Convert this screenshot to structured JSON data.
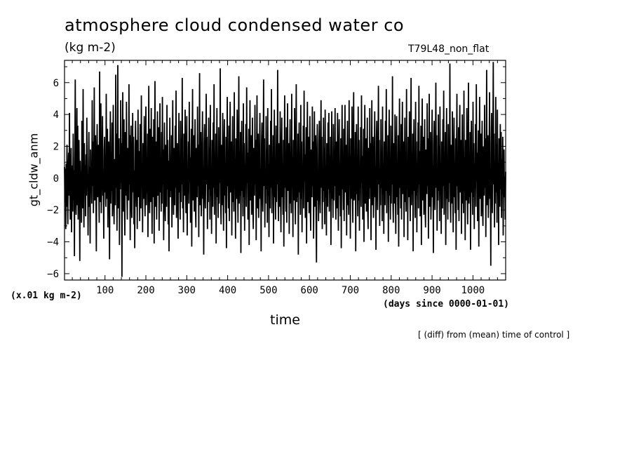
{
  "chart_data": {
    "type": "line",
    "title": "atmosphere cloud condensed water co",
    "units": "(kg m-2)",
    "run_label": "T79L48_non_flat",
    "ylabel": "gt_cldw_anm",
    "xlabel": "time",
    "y_scale_note": "(x.01 kg m-2)",
    "x_units": "(days since 0000-01-01)",
    "comparison_note": "[ (diff) from (mean) time of control ]",
    "xlim": [
      1,
      1080
    ],
    "ylim": [
      -6.4,
      7.4
    ],
    "x_ticks": [
      100,
      200,
      300,
      400,
      500,
      600,
      700,
      800,
      900,
      1000
    ],
    "y_ticks": [
      -6,
      -4,
      -2,
      0,
      2,
      4,
      6
    ],
    "series": [
      {
        "name": "gt_cldw_anm",
        "sampling": "daily, 1080 values",
        "values": [
          0.7,
          -1.5,
          0.6,
          -3.2,
          0.9,
          -1.8,
          2.1,
          -0.5,
          -2.9,
          0.4,
          1.6,
          -1.1,
          4.1,
          -0.8,
          -2.6,
          0.3,
          1.9,
          -3.4,
          0.8,
          -0.6,
          -2.1,
          2.8,
          -1.4,
          0.5,
          -4.9,
          1.2,
          6.2,
          -0.9,
          -2.3,
          0.6,
          4.4,
          -1.7,
          3.3,
          -2.6,
          0.9,
          2.4,
          -0.4,
          -5.2,
          1.1,
          -1.3,
          0.4,
          -2.8,
          3.6,
          1.2,
          -1.9,
          5.6,
          -0.7,
          -3.1,
          2.2,
          -0.3,
          0.8,
          -2.4,
          1.5,
          -1.1,
          3.8,
          -0.6,
          0.2,
          -3.6,
          0.5,
          2.9,
          -1.8,
          0.7,
          -4.1,
          1.8,
          -0.9,
          0.3,
          -1.6,
          4.9,
          -0.5,
          2.3,
          -2.2,
          0.6,
          5.7,
          -1.4,
          0.9,
          2.7,
          -0.8,
          -4.6,
          1.4,
          3.4,
          -1.2,
          0.5,
          2.1,
          -0.7,
          -2.8,
          6.7,
          -1.5,
          0.8,
          4.7,
          -2.2,
          -0.4,
          1.6,
          3.9,
          -1.1,
          0.2,
          -3.8,
          1.7,
          2.6,
          -0.9,
          0.4,
          -1.8,
          5.3,
          -1.3,
          0.6,
          3.1,
          -3.1,
          0.9,
          2.3,
          -0.5,
          -5.1,
          1.4,
          4.2,
          -1.6,
          0.3,
          -0.8,
          3.5,
          -2.4,
          0.7,
          4.6,
          -1.3,
          -2.9,
          1.2,
          0.5,
          -1.7,
          6.5,
          -0.6,
          2.8,
          -3.3,
          0.4,
          7.1,
          -1.9,
          0.8,
          2.5,
          -4.2,
          1.5,
          -0.7,
          4.9,
          -0.3,
          2.2,
          -6.2,
          1.1,
          5.4,
          -2.1,
          0.6,
          3.7,
          -1.5,
          -3.6,
          2.9,
          0.2,
          -1.1,
          4.8,
          -0.8,
          -2.6,
          1.9,
          0.7,
          -1.4,
          5.9,
          -0.4,
          2.7,
          -3.9,
          0.9,
          3.3,
          -1.6,
          -2.5,
          1.3,
          4.1,
          -0.9,
          2.6,
          -2.9,
          0.5,
          -4.4,
          1.8,
          3.6,
          -0.7,
          -1.8,
          2.4,
          -3.2,
          0.6,
          4.3,
          -1.2,
          1.7,
          -0.3,
          -2.7,
          3.4,
          1.1,
          -1.9,
          5.2,
          -0.5,
          0.8,
          -3.4,
          2.2,
          0.3,
          -1.3,
          3.9,
          -0.8,
          -2.4,
          1.6,
          4.5,
          -1.7,
          0.4,
          -0.9,
          2.8,
          -3.7,
          1.2,
          5.8,
          -0.6,
          -2.2,
          3.1,
          0.7,
          -1.5,
          4.4,
          -0.2,
          -3.5,
          2.6,
          0.9,
          -1.2,
          3.7,
          -4.1,
          1.4,
          6.1,
          -1.8,
          0.3,
          2.3,
          -2.6,
          0.8,
          4.2,
          -1.1,
          -0.5,
          3.2,
          -3.3,
          1.5,
          4.7,
          -0.9,
          0.2,
          -2.1,
          2.9,
          -1.6,
          5.1,
          -0.4,
          1.8,
          -3.9,
          0.6,
          3.5,
          -1.4,
          -2.7,
          2.1,
          0.5,
          -1.8,
          4.6,
          -0.7,
          2.4,
          -2.9,
          1.1,
          -4.6,
          0.9,
          3.8,
          -1.2,
          0.4,
          -0.8,
          2.7,
          -3.1,
          1.6,
          4.9,
          -0.3,
          -2.3,
          1.9,
          0.7,
          -1.7,
          3.3,
          -0.6,
          5.5,
          -2.5,
          0.8,
          2.2,
          -1.3,
          -3.8,
          1.4,
          4.1,
          -0.9,
          0.3,
          -2.6,
          3.6,
          -1.5,
          2.5,
          -0.4,
          6.3,
          -1.9,
          0.6,
          -3.4,
          2.8,
          1.2,
          -1.1,
          4.3,
          -0.7,
          -2.2,
          1.7,
          3.9,
          -3.6,
          0.5,
          -0.9,
          2.3,
          -1.6,
          4.8,
          -0.2,
          1.3,
          -2.8,
          0.9,
          3.1,
          -4.3,
          1.5,
          5.6,
          -1.4,
          -0.6,
          2.7,
          -2.1,
          0.4,
          3.7,
          -1.8,
          -3.1,
          1.9,
          0.8,
          -1.2,
          4.5,
          -0.5,
          2.1,
          -3.7,
          0.7,
          6.6,
          -1.7,
          0.3,
          2.9,
          -2.4,
          -0.8,
          1.6,
          4.2,
          -1.3,
          0.6,
          -4.8,
          2.2,
          3.4,
          -0.9,
          -1.9,
          1.1,
          5.3,
          -0.4,
          2.6,
          -3.2,
          0.5,
          -1.5,
          3.8,
          -0.7,
          1.9,
          -2.6,
          4.6,
          -1.1,
          0.8,
          -3.5,
          2.4,
          0.2,
          -1.8,
          3.5,
          -0.6,
          5.9,
          -2.3,
          1.4,
          -0.9,
          2.8,
          -4.1,
          0.7,
          4.4,
          -1.2,
          0.4,
          -2.5,
          3.2,
          -1.6,
          1.8,
          -0.3,
          6.9,
          -1.4,
          -2.9,
          2.1,
          0.6,
          -1.7,
          4.1,
          -0.8,
          -3.3,
          1.5,
          3.7,
          -1.1,
          0.9,
          -2.2,
          2.6,
          -4.4,
          1.3,
          5.1,
          -0.5,
          0.3,
          -1.9,
          3.3,
          -2.7,
          1.7,
          4.8,
          -0.9,
          -0.4,
          2.3,
          -3.6,
          0.8,
          3.9,
          -1.5,
          0.5,
          -2.1,
          5.4,
          -0.7,
          1.2,
          -3.8,
          2.5,
          0.4,
          -1.3,
          4.3,
          -0.6,
          -2.8,
          1.8,
          6.4,
          -1.6,
          0.7,
          -1.1,
          2.9,
          -4.7,
          1.1,
          3.6,
          -0.8,
          0.2,
          -2.4,
          4.7,
          -1.2,
          2.2,
          -3.3,
          0.9,
          -0.5,
          3.4,
          -1.8,
          5.7,
          -0.3,
          1.6,
          -2.6,
          0.6,
          3.1,
          -4.2,
          1.4,
          4.9,
          -1.4,
          -0.7,
          2.7,
          -2.3,
          0.5,
          3.8,
          -1.7,
          -3.2,
          1.9,
          0.8,
          -1.1,
          4.6,
          -0.4,
          2.4,
          -3.9,
          0.7,
          5.2,
          -1.9,
          0.3,
          2.8,
          -2.5,
          -0.9,
          1.5,
          4.1,
          -1.3,
          0.6,
          -4.6,
          2.3,
          3.5,
          -0.8,
          -2.1,
          1.2,
          6.2,
          -0.5,
          2.5,
          -3.1,
          0.4,
          -1.6,
          3.9,
          -0.7,
          1.8,
          -2.8,
          4.4,
          -1.1,
          0.9,
          -3.7,
          2.1,
          0.2,
          -1.9,
          3.6,
          -0.6,
          5.6,
          -2.2,
          1.3,
          -0.8,
          2.7,
          -4.1,
          0.8,
          4.3,
          -1.2,
          0.3,
          -2.6,
          3.3,
          -1.5,
          1.7,
          -0.4,
          6.8,
          -1.3,
          -2.7,
          2.2,
          0.6,
          -1.8,
          4.2,
          -0.9,
          -3.4,
          1.6,
          3.8,
          -1.2,
          0.7,
          -2.3,
          2.4,
          -4.3,
          1.2,
          5.2,
          -0.6,
          0.4,
          -2.1,
          3.2,
          -2.8,
          1.6,
          4.7,
          -0.8,
          -0.3,
          2.2,
          -3.5,
          0.9,
          3.7,
          -1.6,
          0.4,
          -2.2,
          5.3,
          -0.6,
          1.3,
          -3.7,
          2.4,
          0.3,
          -1.4,
          4.4,
          -0.7,
          -2.9,
          1.7,
          5.9,
          -1.5,
          0.8,
          -1.2,
          2.8,
          -4.8,
          1.1,
          3.5,
          -0.9,
          0.3,
          -2.3,
          4.6,
          -1.3,
          2.3,
          -3.4,
          0.8,
          -0.4,
          3.3,
          -1.9,
          5.5,
          -0.2,
          1.5,
          -2.5,
          0.7,
          3.2,
          -4.1,
          1.3,
          4.8,
          -1.5,
          -0.6,
          2.6,
          -2.2,
          0.4,
          3.9,
          -1.8,
          -3.3,
          1.8,
          0.9,
          -1.2,
          4.5,
          -0.5,
          2.3,
          -3.8,
          0.6,
          4.2,
          -1.8,
          0.4,
          2.7,
          -2.4,
          -5.3,
          1.4,
          3.4,
          -1.4,
          0.5,
          -2.7,
          2.2,
          3.6,
          -0.9,
          -2.2,
          1.1,
          4.9,
          -0.6,
          2.6,
          -3.2,
          0.5,
          -1.5,
          3.8,
          -0.8,
          1.9,
          -2.9,
          4.3,
          -1.2,
          0.8,
          -3.6,
          2.2,
          0.3,
          -1.8,
          3.5,
          -0.7,
          4.1,
          -2.1,
          1.4,
          -0.9,
          2.6,
          -4.2,
          0.9,
          4.2,
          -1.3,
          0.2,
          -2.5,
          3.4,
          -1.4,
          1.8,
          -0.5,
          4.4,
          -1.2,
          -2.6,
          2.3,
          0.7,
          -1.9,
          4.1,
          -1.0,
          -3.3,
          1.7,
          3.7,
          -1.1,
          0.6,
          -2.4,
          2.5,
          -4.4,
          1.2,
          4.6,
          -0.7,
          0.4,
          -2.0,
          3.1,
          -2.7,
          1.5,
          4.6,
          -0.9,
          -0.2,
          2.1,
          -3.6,
          1.0,
          3.6,
          -1.7,
          0.3,
          -2.3,
          4.9,
          -0.5,
          1.4,
          -3.8,
          2.5,
          0.4,
          -1.3,
          4.5,
          -0.8,
          -2.8,
          1.8,
          5.4,
          -1.4,
          0.9,
          -1.3,
          2.9,
          -4.6,
          1.0,
          3.4,
          -1.0,
          0.2,
          -2.4,
          4.5,
          -1.4,
          2.4,
          -3.3,
          0.7,
          -0.5,
          3.2,
          -1.8,
          5.2,
          -0.3,
          1.4,
          -2.6,
          0.8,
          3.1,
          -4.0,
          1.4,
          4.6,
          -1.6,
          -0.7,
          2.5,
          -2.1,
          0.5,
          3.8,
          -1.9,
          -3.2,
          1.9,
          0.8,
          -1.3,
          4.4,
          -0.6,
          2.2,
          -3.9,
          0.7,
          4.9,
          -1.7,
          0.5,
          2.6,
          -2.5,
          -0.8,
          1.4,
          4.2,
          -1.2,
          0.7,
          -4.5,
          2.4,
          3.6,
          -0.7,
          -2.0,
          1.2,
          5.8,
          -0.4,
          2.4,
          -3.0,
          0.5,
          -1.7,
          3.7,
          -0.6,
          1.7,
          -2.7,
          4.5,
          -1.0,
          0.9,
          -3.5,
          2.3,
          0.2,
          -1.7,
          3.6,
          -0.8,
          5.6,
          -2.2,
          1.2,
          -0.9,
          2.7,
          -4.0,
          0.9,
          4.3,
          -1.1,
          0.3,
          -2.6,
          3.3,
          -1.6,
          1.9,
          -0.4,
          6.4,
          -1.5,
          -2.8,
          2.2,
          0.5,
          -1.6,
          4.0,
          -0.9,
          -3.5,
          1.6,
          3.9,
          -1.2,
          0.8,
          -2.3,
          2.7,
          -4.3,
          1.3,
          5.0,
          -0.6,
          0.3,
          -1.9,
          3.4,
          -2.6,
          1.7,
          4.8,
          -1.0,
          -0.4,
          2.3,
          -3.7,
          0.8,
          3.8,
          -1.5,
          0.5,
          -2.1,
          5.6,
          -0.7,
          1.1,
          -3.9,
          2.6,
          0.4,
          -1.2,
          4.2,
          -0.7,
          -2.7,
          1.9,
          6.3,
          -1.7,
          0.6,
          -1.0,
          2.8,
          -4.6,
          1.2,
          3.7,
          -0.8,
          0.3,
          -2.5,
          4.8,
          -1.1,
          2.3,
          -3.4,
          0.9,
          -0.6,
          3.5,
          -1.9,
          5.8,
          -0.4,
          1.7,
          -2.4,
          0.6,
          3.3,
          -4.2,
          1.5,
          5.0,
          -1.4,
          -0.8,
          2.6,
          -2.3,
          0.5,
          3.7,
          -1.8,
          -3.1,
          1.8,
          0.7,
          -1.0,
          4.7,
          -0.5,
          2.5,
          -3.8,
          0.6,
          5.3,
          -1.8,
          0.4,
          2.9,
          -2.6,
          -0.9,
          1.7,
          4.3,
          -1.2,
          0.8,
          -4.7,
          2.2,
          3.6,
          -1.0,
          -2.0,
          1.3,
          6.0,
          -0.6,
          2.7,
          -3.3,
          0.5,
          -1.4,
          4.0,
          -0.8,
          2.0,
          -2.7,
          4.5,
          -1.1,
          1.0,
          -3.5,
          2.3,
          0.2,
          -1.9,
          3.7,
          -0.5,
          5.5,
          -2.3,
          1.4,
          -0.7,
          2.9,
          -4.2,
          0.8,
          4.4,
          -1.3,
          0.5,
          -2.6,
          3.4,
          -1.5,
          1.9,
          -0.3,
          7.2,
          -1.4,
          -2.8,
          2.1,
          0.7,
          -1.6,
          4.2,
          -0.8,
          -3.4,
          1.4,
          3.8,
          -1.2,
          0.9,
          -2.2,
          2.5,
          -4.5,
          1.3,
          5.3,
          -0.5,
          0.4,
          -2.0,
          3.2,
          -2.7,
          1.8,
          4.6,
          -0.9,
          -0.5,
          2.4,
          -3.5,
          0.8,
          4.0,
          -1.6,
          0.6,
          -2.2,
          5.5,
          -0.8,
          1.3,
          -3.9,
          2.4,
          0.3,
          -1.4,
          4.4,
          -0.6,
          -2.9,
          1.8,
          6.0,
          -1.6,
          0.7,
          -1.2,
          2.9,
          -4.5,
          1.1,
          3.6,
          -0.9,
          0.4,
          -2.3,
          4.8,
          -1.2,
          2.2,
          -3.2,
          0.9,
          -0.6,
          3.4,
          -1.8,
          5.9,
          -0.2,
          1.6,
          -2.7,
          0.6,
          3.0,
          -4.3,
          1.4,
          5.1,
          -1.3,
          -0.6,
          2.8,
          -2.4,
          0.4,
          3.6,
          -1.7,
          -3.0,
          2.0,
          0.9,
          -1.1,
          4.6,
          -0.6,
          2.5,
          -3.7,
          0.8,
          6.8,
          -1.7,
          0.3,
          2.7,
          -2.5,
          -0.9,
          1.7,
          5.4,
          -1.3,
          0.5,
          -5.5,
          2.2,
          4.1,
          -0.8,
          -2.2,
          1.3,
          7.3,
          -0.4,
          2.8,
          -3.1,
          0.6,
          -1.6,
          5.1,
          -0.9,
          2.1,
          -2.8,
          4.3,
          -1.1,
          1.0,
          -4.2,
          2.5,
          0.3,
          -1.8,
          3.4,
          -0.7,
          2.9,
          -2.5,
          1.2,
          -1.0,
          2.6,
          -3.6,
          0.9,
          1.8,
          -1.2,
          0.1,
          -2.6,
          0.4
        ]
      }
    ]
  }
}
